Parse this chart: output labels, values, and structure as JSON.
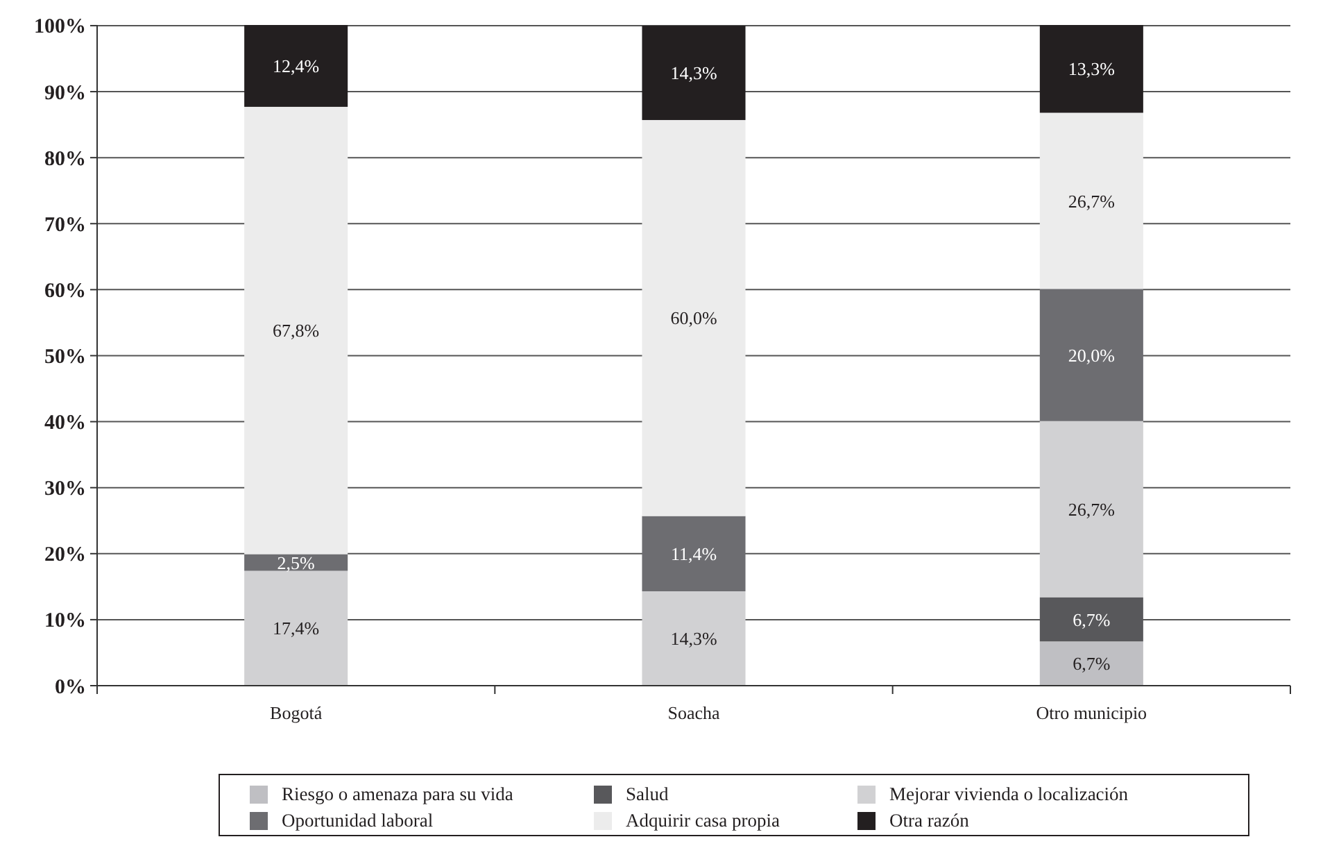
{
  "chart_data": {
    "type": "bar",
    "stacked": true,
    "categories": [
      "Bogotá",
      "Soacha",
      "Otro municipio"
    ],
    "series": [
      {
        "name": "Riesgo o amenaza para su vida",
        "color": "#bfbfc3",
        "values": [
          null,
          null,
          6.7
        ],
        "value_labels": [
          null,
          null,
          "6,7%"
        ]
      },
      {
        "name": "Salud",
        "color": "#58585b",
        "values": [
          null,
          null,
          6.7
        ],
        "value_labels": [
          null,
          null,
          "6,7%"
        ]
      },
      {
        "name": "Mejorar vivienda o localización",
        "color": "#d1d1d3",
        "values": [
          17.4,
          14.3,
          26.7
        ],
        "value_labels": [
          "17,4%",
          "14,3%",
          "26,7%"
        ]
      },
      {
        "name": "Oportunidad laboral",
        "color": "#6d6d71",
        "values": [
          2.5,
          11.4,
          20.0
        ],
        "value_labels": [
          "2,5%",
          "11,4%",
          "20,0%"
        ]
      },
      {
        "name": "Adquirir casa propia",
        "color": "#ececec",
        "values": [
          67.8,
          60.0,
          26.7
        ],
        "value_labels": [
          "67,8%",
          "60,0%",
          "26,7%"
        ]
      },
      {
        "name": "Otra razón",
        "color": "#231f20",
        "values": [
          12.4,
          14.3,
          13.3
        ],
        "value_labels": [
          "12,4%",
          "14,3%",
          "13,3%"
        ]
      }
    ],
    "ylim": [
      0,
      100.1
    ],
    "yticks": [
      {
        "value": 0,
        "label": "0%"
      },
      {
        "value": 10,
        "label": "10%"
      },
      {
        "value": 20,
        "label": "20%"
      },
      {
        "value": 30,
        "label": "30%"
      },
      {
        "value": 40,
        "label": "40%"
      },
      {
        "value": 50,
        "label": "50%"
      },
      {
        "value": 60,
        "label": "60%"
      },
      {
        "value": 70,
        "label": "70%"
      },
      {
        "value": 80,
        "label": "80%"
      },
      {
        "value": 90,
        "label": "90%"
      },
      {
        "value": 100,
        "label": "100%"
      }
    ],
    "grid": "y",
    "legend": "bottom"
  }
}
